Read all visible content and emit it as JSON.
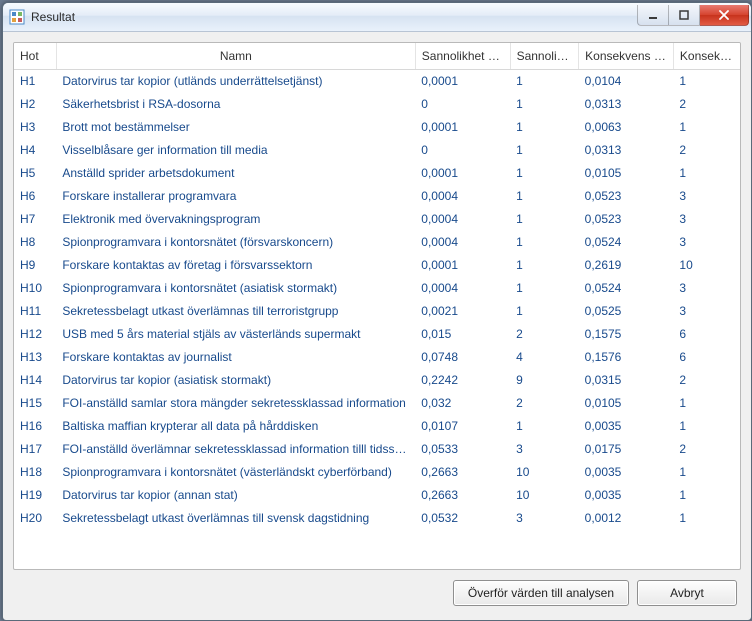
{
  "window": {
    "title": "Resultat"
  },
  "columns": {
    "hot": "Hot",
    "name": "Namn",
    "prob_weight": "Sannolikhet vikt",
    "prob": "Sannolikhet",
    "cons_weight": "Konsekvens vikt",
    "cons": "Konsekvens"
  },
  "rows": [
    {
      "hot": "H1",
      "name": "Datorvirus tar kopior (utländs underrättelsetjänst)",
      "pw": "0,0001",
      "p": "1",
      "cw": "0,0104",
      "c": "1"
    },
    {
      "hot": "H2",
      "name": "Säkerhetsbrist i RSA-dosorna",
      "pw": "0",
      "p": "1",
      "cw": "0,0313",
      "c": "2"
    },
    {
      "hot": "H3",
      "name": "Brott mot bestämmelser",
      "pw": "0,0001",
      "p": "1",
      "cw": "0,0063",
      "c": "1"
    },
    {
      "hot": "H4",
      "name": "Visselblåsare ger information till media",
      "pw": "0",
      "p": "1",
      "cw": "0,0313",
      "c": "2"
    },
    {
      "hot": "H5",
      "name": "Anställd sprider arbetsdokument",
      "pw": "0,0001",
      "p": "1",
      "cw": "0,0105",
      "c": "1"
    },
    {
      "hot": "H6",
      "name": "Forskare installerar programvara",
      "pw": "0,0004",
      "p": "1",
      "cw": "0,0523",
      "c": "3"
    },
    {
      "hot": "H7",
      "name": "Elektronik med övervakningsprogram",
      "pw": "0,0004",
      "p": "1",
      "cw": "0,0523",
      "c": "3"
    },
    {
      "hot": "H8",
      "name": "Spionprogramvara i kontorsnätet (försvarskoncern)",
      "pw": "0,0004",
      "p": "1",
      "cw": "0,0524",
      "c": "3"
    },
    {
      "hot": "H9",
      "name": "Forskare kontaktas av företag i försvarssektorn",
      "pw": "0,0001",
      "p": "1",
      "cw": "0,2619",
      "c": "10"
    },
    {
      "hot": "H10",
      "name": "Spionprogramvara i kontorsnätet (asiatisk stormakt)",
      "pw": "0,0004",
      "p": "1",
      "cw": "0,0524",
      "c": "3"
    },
    {
      "hot": "H11",
      "name": "Sekretessbelagt utkast överlämnas till terroristgrupp",
      "pw": "0,0021",
      "p": "1",
      "cw": "0,0525",
      "c": "3"
    },
    {
      "hot": "H12",
      "name": "USB med 5 års material stjäls av västerländs supermakt",
      "pw": "0,015",
      "p": "2",
      "cw": "0,1575",
      "c": "6"
    },
    {
      "hot": "H13",
      "name": "Forskare kontaktas av journalist",
      "pw": "0,0748",
      "p": "4",
      "cw": "0,1576",
      "c": "6"
    },
    {
      "hot": "H14",
      "name": "Datorvirus tar kopior (asiatisk stormakt)",
      "pw": "0,2242",
      "p": "9",
      "cw": "0,0315",
      "c": "2"
    },
    {
      "hot": "H15",
      "name": "FOI-anställd samlar stora mängder sekretessklassad information",
      "pw": "0,032",
      "p": "2",
      "cw": "0,0105",
      "c": "1"
    },
    {
      "hot": "H16",
      "name": "Baltiska maffian krypterar all data på hårddisken",
      "pw": "0,0107",
      "p": "1",
      "cw": "0,0035",
      "c": "1"
    },
    {
      "hot": "H17",
      "name": "FOI-anställd överlämnar sekretessklassad information tilll tidsskrift",
      "pw": "0,0533",
      "p": "3",
      "cw": "0,0175",
      "c": "2"
    },
    {
      "hot": "H18",
      "name": "Spionprogramvara i kontorsnätet (västerländskt cyberförband)",
      "pw": "0,2663",
      "p": "10",
      "cw": "0,0035",
      "c": "1"
    },
    {
      "hot": "H19",
      "name": "Datorvirus tar kopior (annan stat)",
      "pw": "0,2663",
      "p": "10",
      "cw": "0,0035",
      "c": "1"
    },
    {
      "hot": "H20",
      "name": "Sekretessbelagt utkast överlämnas till svensk dagstidning",
      "pw": "0,0532",
      "p": "3",
      "cw": "0,0012",
      "c": "1"
    }
  ],
  "buttons": {
    "transfer": "Överför värden till analysen",
    "cancel": "Avbryt"
  }
}
